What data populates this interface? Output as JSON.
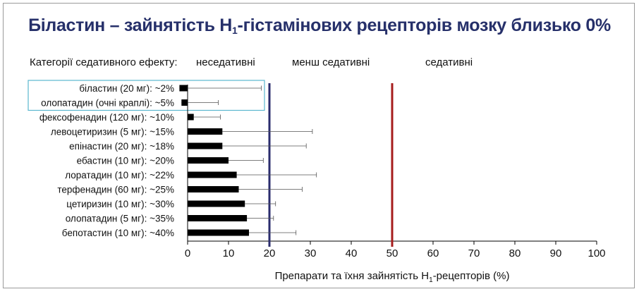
{
  "title": {
    "prefix": "Біластин – зайнятість H",
    "sub": "1",
    "suffix": "-гістамінових рецепторів мозку близько 0%"
  },
  "categories_header": {
    "label": "Категорії седативного ефекту:",
    "non_sedating": "неседативні",
    "less_sedating": "менш седативні",
    "sedating": "седативні"
  },
  "x_axis": {
    "label_prefix": "Препарати та їхня зайнятість H",
    "label_sub": "1",
    "label_suffix": "-рецепторів (%)"
  },
  "colors": {
    "title": "#26306a",
    "bar": "#000000",
    "line_20": "#2b2d6e",
    "line_50": "#a61c1c",
    "highlight_box": "#5bb7cf"
  },
  "chart_data": {
    "type": "bar",
    "orientation": "horizontal",
    "xlim": [
      0,
      100
    ],
    "xticks": [
      0,
      10,
      20,
      30,
      40,
      50,
      60,
      70,
      80,
      90,
      100
    ],
    "categories": [
      "біластин (20 мг): ~2%",
      "олопатадин (очні краплі): ~5%",
      "фексофенадин (120 мг): ~10%",
      "левоцетиризин (5 мг): ~15%",
      "епінастин (20 мг): ~18%",
      "ебастин (10 мг): ~20%",
      "лоратадин (10 мг): ~22%",
      "терфенадин (60 мг): ~25%",
      "цетиризин (10 мг): ~30%",
      "олопатадин (5 мг): ~35%",
      "бепотастин (10 мг): ~40%"
    ],
    "values": [
      -2,
      -1.5,
      1.5,
      8.5,
      8.5,
      10,
      12,
      12.5,
      14,
      14.5,
      15
    ],
    "error_upper": [
      18,
      7.5,
      8,
      30.5,
      29,
      18.5,
      31.5,
      28,
      21.5,
      21,
      26.5
    ],
    "error_lower": [
      -2,
      -1.5,
      1.5,
      8.5,
      8.5,
      10,
      12,
      12.5,
      14,
      14.5,
      15
    ],
    "reference_lines": [
      20,
      50
    ],
    "highlighted_rows": [
      0,
      1
    ]
  }
}
